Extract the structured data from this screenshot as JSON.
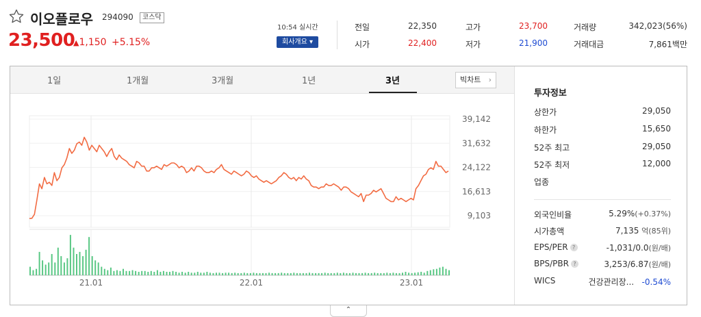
{
  "stock": {
    "name": "이오플로우",
    "code": "294090",
    "market": "코스닥",
    "price": "23,500",
    "change_icon": "up-triangle",
    "change": "1,150",
    "change_pct": "+5.15%",
    "realtime": "10:54 실시간",
    "company_button": "회사개요 ▾"
  },
  "summary": [
    {
      "label": "전일",
      "value": "22,350",
      "color": "#333333"
    },
    {
      "label": "고가",
      "value": "23,700",
      "color": "#e02020"
    },
    {
      "label": "거래량",
      "value": "342,023(56%)",
      "color": "#333333"
    },
    {
      "label": "시가",
      "value": "22,400",
      "color": "#e02020"
    },
    {
      "label": "저가",
      "value": "21,900",
      "color": "#1e4bd2"
    },
    {
      "label": "거래대금",
      "value": "7,861백만",
      "color": "#333333"
    }
  ],
  "tabs": [
    "1일",
    "1개월",
    "3개월",
    "1년",
    "3년"
  ],
  "active_tab": "3년",
  "big_chart_button": "빅차트",
  "chart_data": {
    "type": "line",
    "y_ticks": [
      "39,142",
      "31,632",
      "24,122",
      "16,613",
      "9,103"
    ],
    "x_ticks": [
      "21.01",
      "22.01",
      "23.01"
    ],
    "ylim": [
      9103,
      39142
    ],
    "line_color": "#f26b42",
    "volume_color": "#58c783",
    "series": [
      {
        "values": [
          8200,
          8300,
          9500,
          14000,
          19000,
          17500,
          21000,
          19000,
          19500,
          18500,
          22500,
          20000,
          21000,
          24000,
          25000,
          27000,
          30000,
          28500,
          29500,
          31500,
          32000,
          31000,
          33500,
          32000,
          29500,
          31000,
          30000,
          29000,
          31000,
          30000,
          29000,
          27500,
          29000,
          30000,
          27500,
          26500,
          28000,
          27000,
          26500,
          26000,
          25000,
          24500,
          24000,
          26000,
          25500,
          24500,
          24500,
          23000,
          23000,
          24000,
          24000,
          24500,
          24000,
          23500,
          25000,
          24500,
          25000,
          25500,
          25500,
          25000,
          24000,
          24500,
          24000,
          22500,
          23000,
          24000,
          23000,
          24500,
          24500,
          24000,
          23000,
          22500,
          22500,
          23000,
          22500,
          23500,
          24000,
          25000,
          23500,
          23000,
          22500,
          22000,
          23000,
          22500,
          22000,
          21500,
          22000,
          23000,
          22500,
          21500,
          21000,
          21500,
          20500,
          20000,
          19500,
          20000,
          19500,
          19000,
          19500,
          20000,
          21000,
          21500,
          22500,
          22000,
          21000,
          20500,
          21000,
          20000,
          21000,
          20500,
          21500,
          20500,
          20000,
          18500,
          18000,
          18000,
          17500,
          18000,
          18000,
          19000,
          18500,
          18500,
          19000,
          18500,
          18000,
          17000,
          18000,
          18000,
          17500,
          16500,
          16000,
          15500,
          15000,
          16000,
          13500,
          15500,
          15500,
          16000,
          17000,
          16500,
          17000,
          17500,
          16000,
          14500,
          14000,
          13500,
          13500,
          15000,
          14000,
          14500,
          14000,
          13500,
          14000,
          14500,
          14000,
          17500,
          18500,
          20000,
          21500,
          22000,
          23500,
          24000,
          23500,
          26000,
          24500,
          24500,
          23500,
          22500,
          23000
        ]
      }
    ],
    "volume": [
      0.2,
      0.12,
      0.15,
      0.55,
      0.35,
      0.25,
      0.3,
      0.5,
      0.3,
      0.65,
      0.45,
      0.3,
      0.4,
      0.95,
      0.65,
      0.5,
      0.55,
      0.45,
      0.6,
      0.9,
      0.45,
      0.35,
      0.3,
      0.2,
      0.15,
      0.12,
      0.18,
      0.1,
      0.12,
      0.1,
      0.15,
      0.1,
      0.1,
      0.12,
      0.1,
      0.08,
      0.1,
      0.1,
      0.08,
      0.1,
      0.08,
      0.12,
      0.08,
      0.1,
      0.08,
      0.08,
      0.1,
      0.08,
      0.06,
      0.08,
      0.06,
      0.08,
      0.06,
      0.06,
      0.08,
      0.06,
      0.06,
      0.08,
      0.06,
      0.05,
      0.06,
      0.06,
      0.05,
      0.06,
      0.06,
      0.05,
      0.06,
      0.05,
      0.05,
      0.06,
      0.05,
      0.05,
      0.06,
      0.05,
      0.05,
      0.05,
      0.05,
      0.06,
      0.05,
      0.05,
      0.05,
      0.06,
      0.05,
      0.05,
      0.05,
      0.06,
      0.05,
      0.05,
      0.05,
      0.05,
      0.06,
      0.05,
      0.05,
      0.05,
      0.05,
      0.06,
      0.05,
      0.05,
      0.05,
      0.06,
      0.05,
      0.06,
      0.05,
      0.05,
      0.06,
      0.05,
      0.05,
      0.05,
      0.06,
      0.05,
      0.05,
      0.06,
      0.05,
      0.05,
      0.05,
      0.06,
      0.05,
      0.06,
      0.05,
      0.05,
      0.06,
      0.08,
      0.06,
      0.05,
      0.06,
      0.07,
      0.08,
      0.06,
      0.1,
      0.12,
      0.14,
      0.15,
      0.18,
      0.2,
      0.15,
      0.12
    ]
  },
  "invest": {
    "title": "투자정보",
    "rows1": [
      {
        "label": "상한가",
        "value": "29,050",
        "color": "#e02020"
      },
      {
        "label": "하한가",
        "value": "15,650",
        "color": "#1e4bd2"
      },
      {
        "label": "52주 최고",
        "value": "29,050",
        "color": "#333333"
      },
      {
        "label": "52주 최저",
        "value": "12,000",
        "color": "#333333"
      },
      {
        "label": "업종",
        "value": "",
        "color": "#333333"
      }
    ],
    "foreign_label": "외국인비율",
    "foreign_value": "5.29%",
    "foreign_change": "(+0.37%)",
    "mcap_label": "시가총액",
    "mcap_value": "7,135",
    "mcap_unit": "억(85위)",
    "eps_label": "EPS/PER",
    "eps_value": "-1,031/0.0",
    "eps_unit": "(원/배)",
    "bps_label": "BPS/PBR",
    "bps_value": "3,253/6.87",
    "bps_unit": "(원/배)",
    "wics_label": "WICS",
    "wics_value": "건강관리장...",
    "wics_change": "-0.54%",
    "help_icon": "?"
  },
  "collapse_icon": "⌃"
}
